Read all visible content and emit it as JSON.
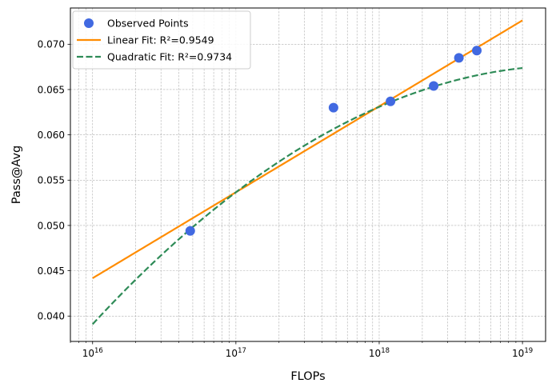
{
  "chart_data": {
    "type": "scatter",
    "title": "",
    "xlabel": "FLOPs",
    "ylabel": "Pass@Avg",
    "xscale": "log",
    "xlim": [
      7000000000000000.0,
      1.45e+19
    ],
    "ylim": [
      0.0372,
      0.074
    ],
    "x_ticks": [
      1e+16,
      1e+17,
      1e+18,
      1e+19
    ],
    "x_tick_labels": [
      {
        "base": "10",
        "exp": "16"
      },
      {
        "base": "10",
        "exp": "17"
      },
      {
        "base": "10",
        "exp": "18"
      },
      {
        "base": "10",
        "exp": "19"
      }
    ],
    "y_ticks": [
      0.04,
      0.045,
      0.05,
      0.055,
      0.06,
      0.065,
      0.07
    ],
    "y_tick_labels": [
      "0.040",
      "0.045",
      "0.050",
      "0.055",
      "0.060",
      "0.065",
      "0.070"
    ],
    "grid": true,
    "legend_position": "upper-left",
    "series": [
      {
        "name": "Observed Points",
        "kind": "scatter",
        "color": "#4169E1",
        "x": [
          4.8e+16,
          4.8e+17,
          1.2e+18,
          2.4e+18,
          3.6e+18,
          4.8e+18
        ],
        "y": [
          0.0494,
          0.063,
          0.0637,
          0.0654,
          0.0685,
          0.0693
        ]
      },
      {
        "name": "Linear Fit: R²=0.9549",
        "kind": "line",
        "style": "solid",
        "color": "#FF8C00",
        "x_range": [
          1e+16,
          1e+19
        ],
        "coefficients": [
          0.04418,
          0.009485
        ]
      },
      {
        "name": "Quadratic Fit: R²=0.9734",
        "kind": "line",
        "style": "dashed",
        "color": "#2E8B57",
        "x_range": [
          1e+16,
          1e+19
        ],
        "coefficients": [
          0.0391,
          0.01713,
          -0.002568
        ]
      }
    ]
  }
}
